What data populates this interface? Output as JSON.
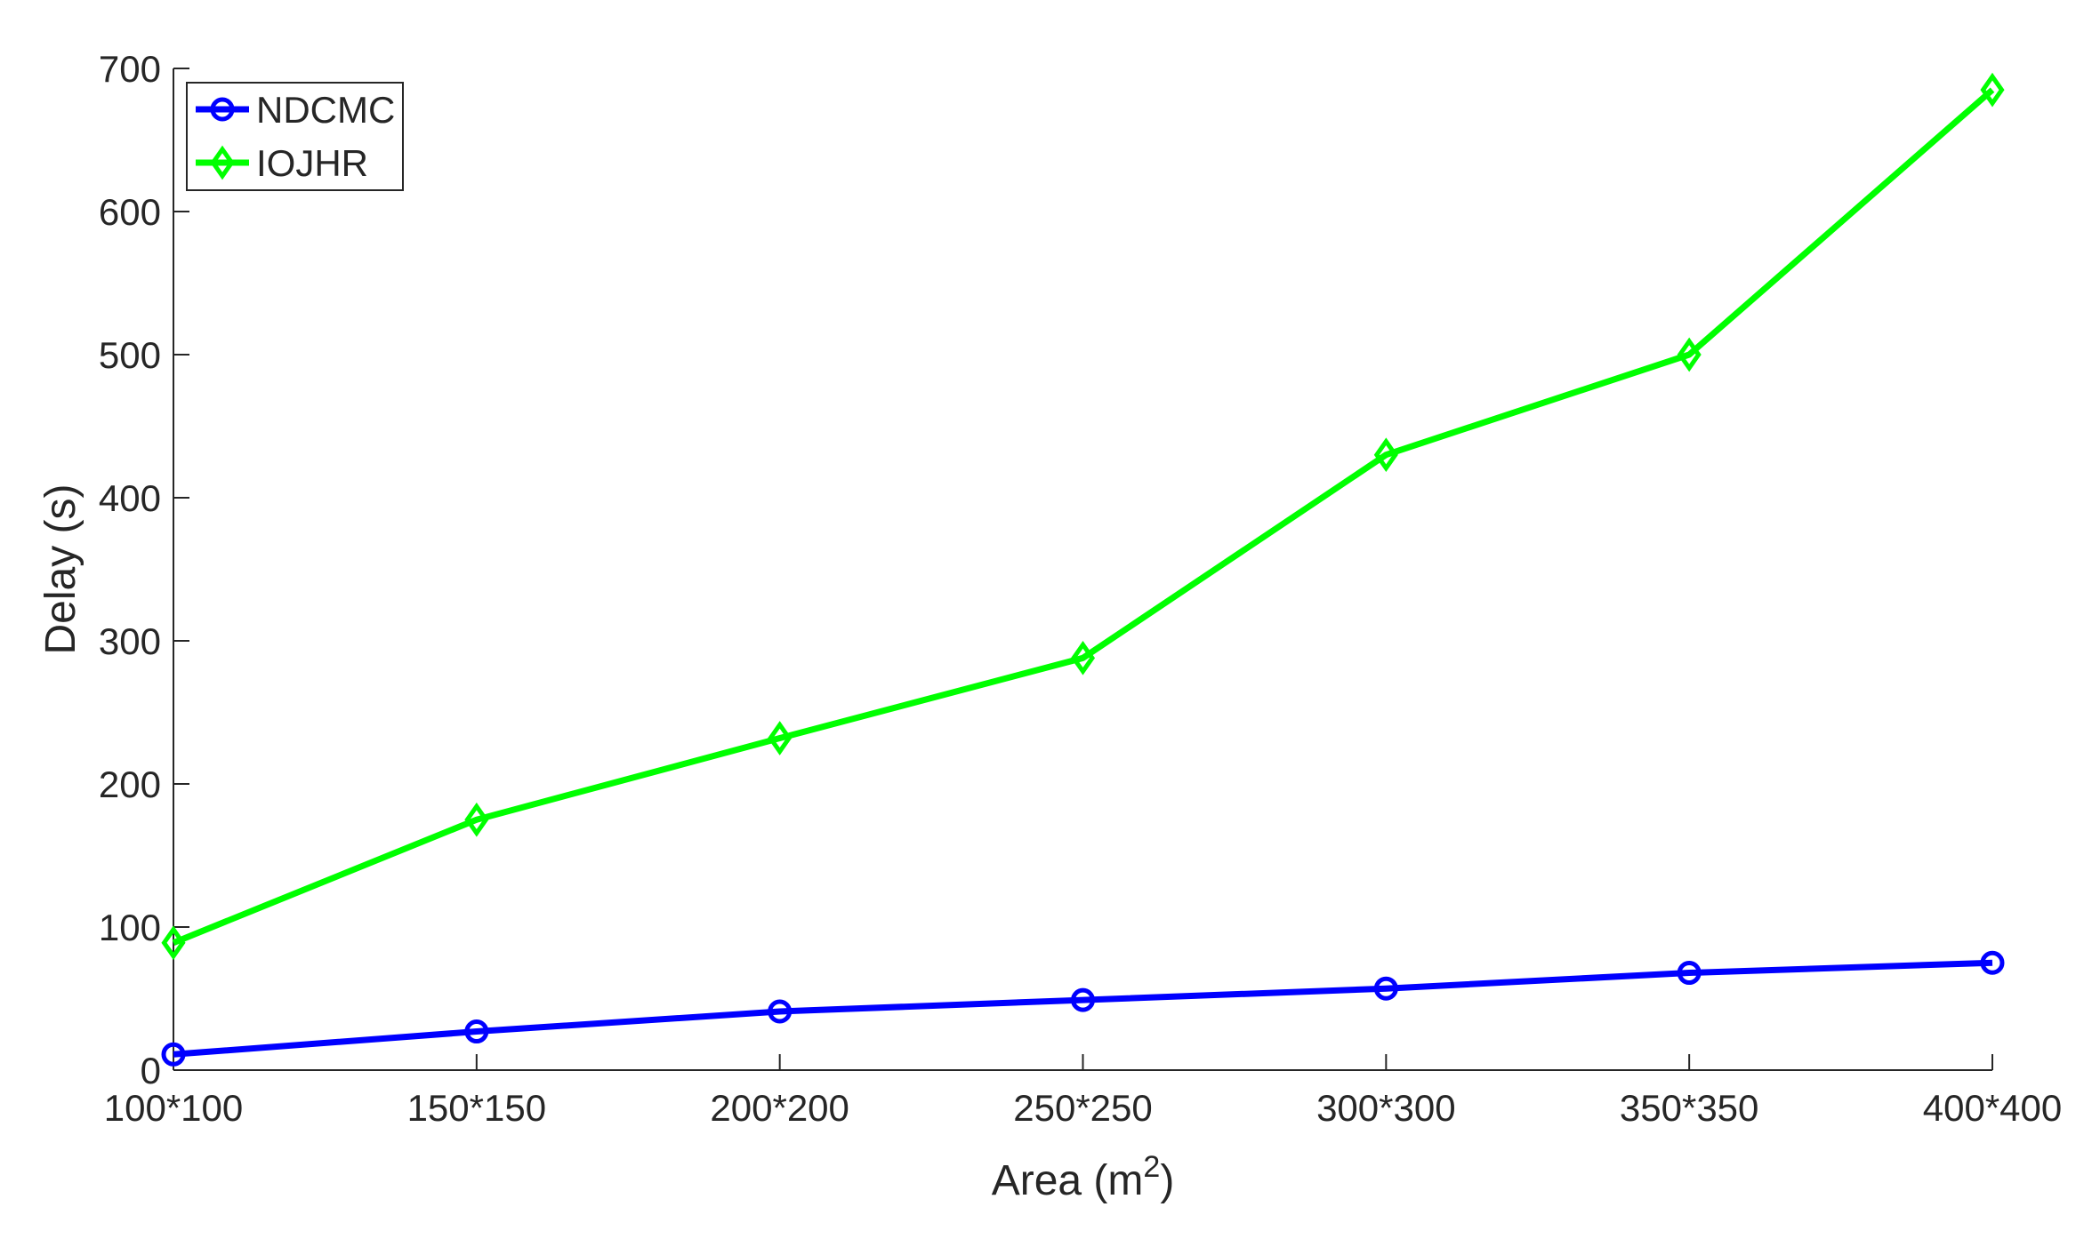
{
  "chart_data": {
    "type": "line",
    "title": "",
    "xlabel": {
      "text": "Area (m",
      "superscript": "2",
      "suffix": ")"
    },
    "ylabel": "Delay (s)",
    "categories": [
      "100*100",
      "150*150",
      "200*200",
      "250*250",
      "300*300",
      "350*350",
      "400*400"
    ],
    "ylim": [
      0,
      700
    ],
    "yticks": [
      0,
      100,
      200,
      300,
      400,
      500,
      600,
      700
    ],
    "grid": false,
    "legend_position": "top-left",
    "series": [
      {
        "name": "NDCMC",
        "color": "#0000ff",
        "marker": "circle",
        "values": [
          11,
          27,
          41,
          49,
          57,
          68,
          75
        ]
      },
      {
        "name": "IOJHR",
        "color": "#00ff00",
        "marker": "diamond",
        "values": [
          89,
          175,
          232,
          288,
          430,
          500,
          685
        ]
      }
    ]
  }
}
